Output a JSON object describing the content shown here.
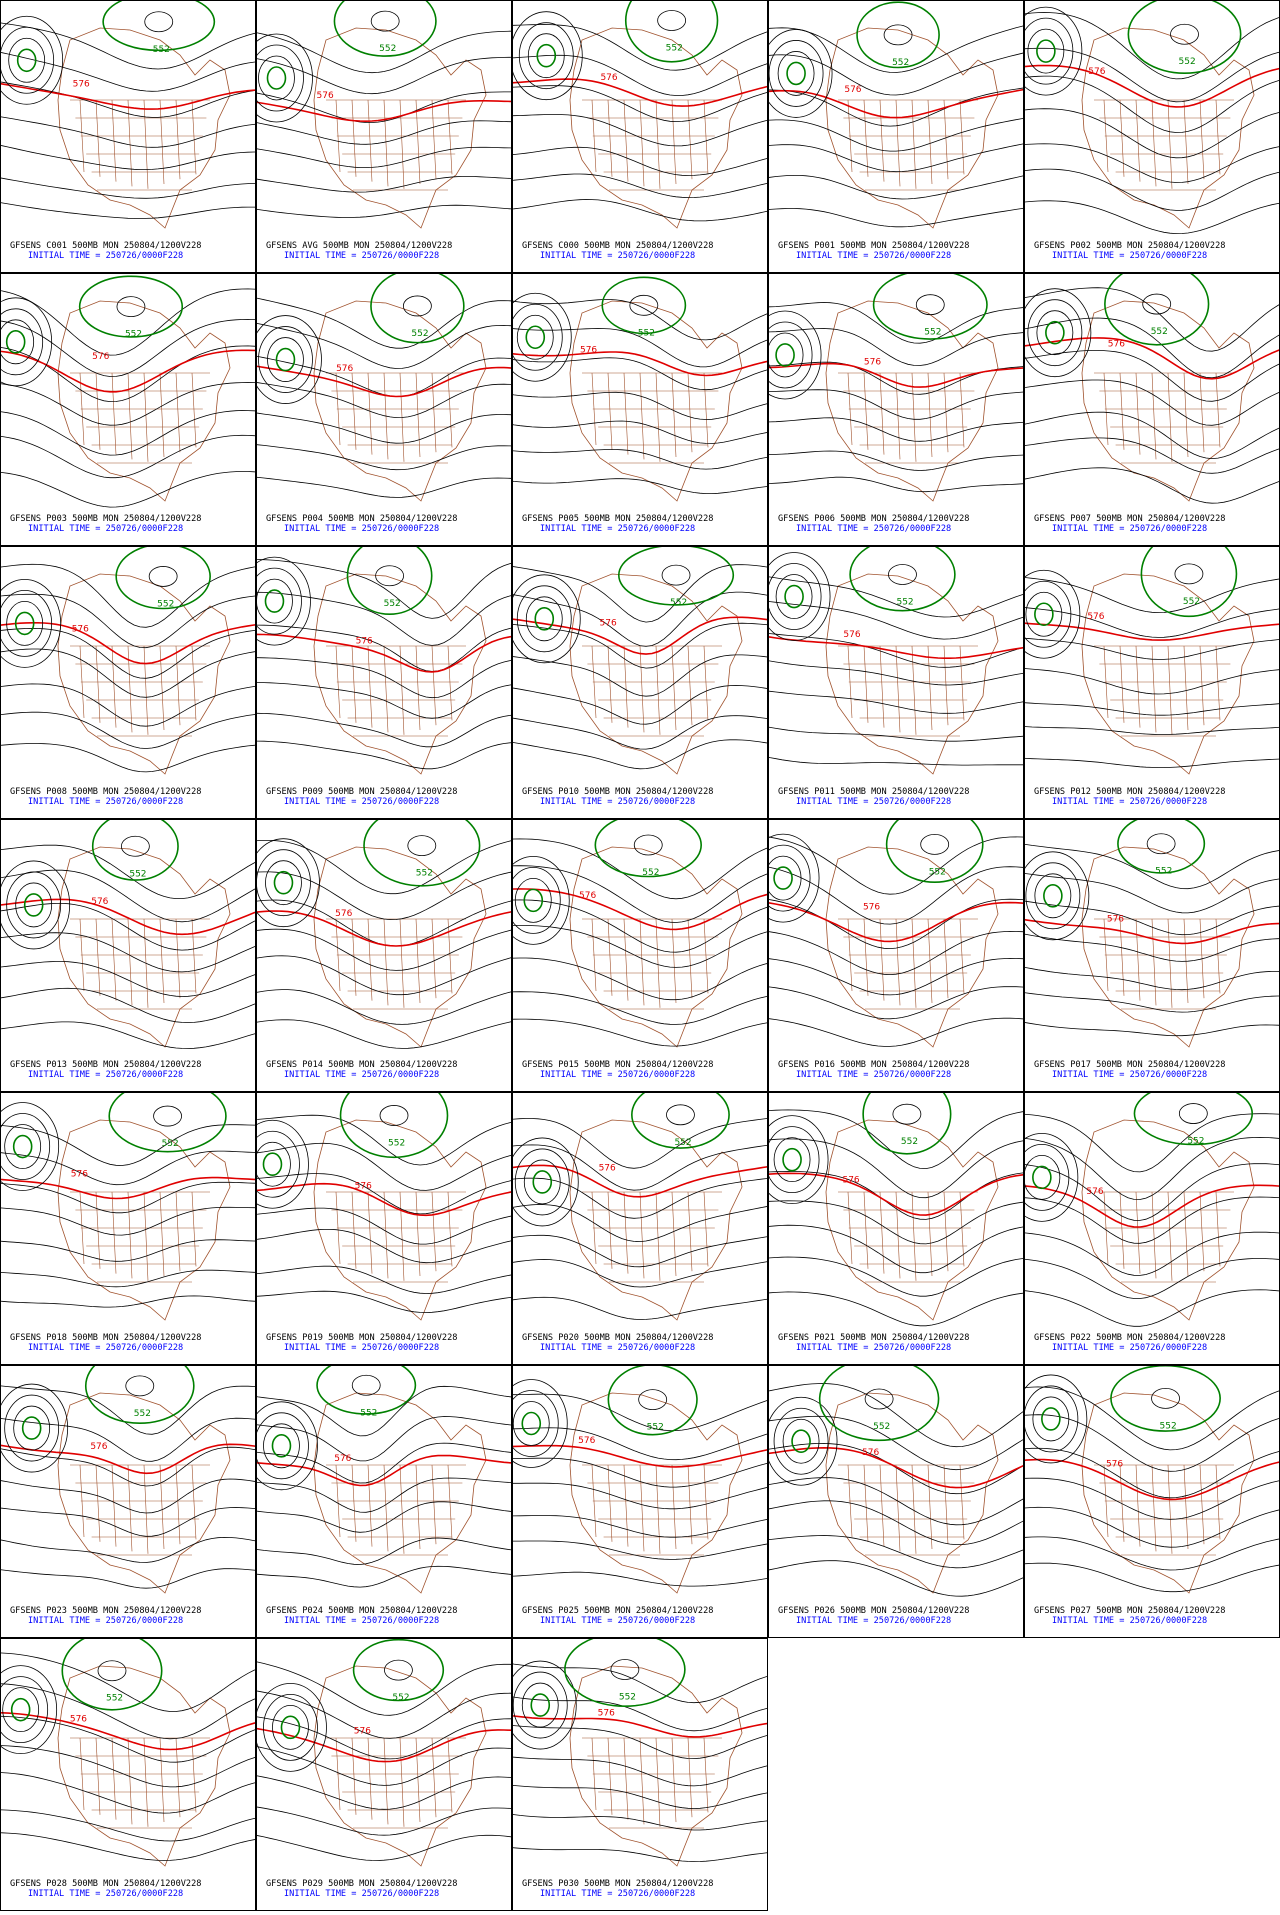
{
  "panels": [
    {
      "model_line": "GFSENS C001 500MB MON 250804/1200V228",
      "init_line": "INITIAL TIME = 250726/0000F228",
      "contour_labels": [
        "552",
        "576"
      ]
    },
    {
      "model_line": "GFSENS AVG 500MB MON 250804/1200V228",
      "init_line": "INITIAL TIME = 250726/0000F228",
      "contour_labels": [
        "552",
        "576"
      ]
    },
    {
      "model_line": "GFSENS C000 500MB MON 250804/1200V228",
      "init_line": "INITIAL TIME = 250726/0000F228",
      "contour_labels": [
        "552",
        "576"
      ]
    },
    {
      "model_line": "GFSENS P001 500MB MON 250804/1200V228",
      "init_line": "INITIAL TIME = 250726/0000F228",
      "contour_labels": [
        "552",
        "576"
      ]
    },
    {
      "model_line": "GFSENS P002 500MB MON 250804/1200V228",
      "init_line": "INITIAL TIME = 250726/0000F228",
      "contour_labels": [
        "552",
        "576"
      ]
    },
    {
      "model_line": "GFSENS P003 500MB MON 250804/1200V228",
      "init_line": "INITIAL TIME = 250726/0000F228",
      "contour_labels": [
        "552",
        "576"
      ]
    },
    {
      "model_line": "GFSENS P004 500MB MON 250804/1200V228",
      "init_line": "INITIAL TIME = 250726/0000F228",
      "contour_labels": [
        "552",
        "576"
      ]
    },
    {
      "model_line": "GFSENS P005 500MB MON 250804/1200V228",
      "init_line": "INITIAL TIME = 250726/0000F228",
      "contour_labels": [
        "552",
        "576"
      ]
    },
    {
      "model_line": "GFSENS P006 500MB MON 250804/1200V228",
      "init_line": "INITIAL TIME = 250726/0000F228",
      "contour_labels": [
        "552",
        "576"
      ]
    },
    {
      "model_line": "GFSENS P007 500MB MON 250804/1200V228",
      "init_line": "INITIAL TIME = 250726/0000F228",
      "contour_labels": [
        "552",
        "576"
      ]
    },
    {
      "model_line": "GFSENS P008 500MB MON 250804/1200V228",
      "init_line": "INITIAL TIME = 250726/0000F228",
      "contour_labels": [
        "552",
        "576"
      ]
    },
    {
      "model_line": "GFSENS P009 500MB MON 250804/1200V228",
      "init_line": "INITIAL TIME = 250726/0000F228",
      "contour_labels": [
        "552",
        "576"
      ]
    },
    {
      "model_line": "GFSENS P010 500MB MON 250804/1200V228",
      "init_line": "INITIAL TIME = 250726/0000F228",
      "contour_labels": [
        "552",
        "576"
      ]
    },
    {
      "model_line": "GFSENS P011 500MB MON 250804/1200V228",
      "init_line": "INITIAL TIME = 250726/0000F228",
      "contour_labels": [
        "552",
        "576"
      ]
    },
    {
      "model_line": "GFSENS P012 500MB MON 250804/1200V228",
      "init_line": "INITIAL TIME = 250726/0000F228",
      "contour_labels": [
        "552",
        "576"
      ]
    },
    {
      "model_line": "GFSENS P013 500MB MON 250804/1200V228",
      "init_line": "INITIAL TIME = 250726/0000F228",
      "contour_labels": [
        "552",
        "576"
      ]
    },
    {
      "model_line": "GFSENS P014 500MB MON 250804/1200V228",
      "init_line": "INITIAL TIME = 250726/0000F228",
      "contour_labels": [
        "552",
        "576"
      ]
    },
    {
      "model_line": "GFSENS P015 500MB MON 250804/1200V228",
      "init_line": "INITIAL TIME = 250726/0000F228",
      "contour_labels": [
        "552",
        "576"
      ]
    },
    {
      "model_line": "GFSENS P016 500MB MON 250804/1200V228",
      "init_line": "INITIAL TIME = 250726/0000F228",
      "contour_labels": [
        "552",
        "576"
      ]
    },
    {
      "model_line": "GFSENS P017 500MB MON 250804/1200V228",
      "init_line": "INITIAL TIME = 250726/0000F228",
      "contour_labels": [
        "552",
        "576"
      ]
    },
    {
      "model_line": "GFSENS P018 500MB MON 250804/1200V228",
      "init_line": "INITIAL TIME = 250726/0000F228",
      "contour_labels": [
        "552",
        "576"
      ]
    },
    {
      "model_line": "GFSENS P019 500MB MON 250804/1200V228",
      "init_line": "INITIAL TIME = 250726/0000F228",
      "contour_labels": [
        "552",
        "576"
      ]
    },
    {
      "model_line": "GFSENS P020 500MB MON 250804/1200V228",
      "init_line": "INITIAL TIME = 250726/0000F228",
      "contour_labels": [
        "552",
        "576"
      ]
    },
    {
      "model_line": "GFSENS P021 500MB MON 250804/1200V228",
      "init_line": "INITIAL TIME = 250726/0000F228",
      "contour_labels": [
        "552",
        "576"
      ]
    },
    {
      "model_line": "GFSENS P022 500MB MON 250804/1200V228",
      "init_line": "INITIAL TIME = 250726/0000F228",
      "contour_labels": [
        "552",
        "576"
      ]
    },
    {
      "model_line": "GFSENS P023 500MB MON 250804/1200V228",
      "init_line": "INITIAL TIME = 250726/0000F228",
      "contour_labels": [
        "552",
        "576"
      ]
    },
    {
      "model_line": "GFSENS P024 500MB MON 250804/1200V228",
      "init_line": "INITIAL TIME = 250726/0000F228",
      "contour_labels": [
        "552",
        "576"
      ]
    },
    {
      "model_line": "GFSENS P025 500MB MON 250804/1200V228",
      "init_line": "INITIAL TIME = 250726/0000F228",
      "contour_labels": [
        "552",
        "576"
      ]
    },
    {
      "model_line": "GFSENS P026 500MB MON 250804/1200V228",
      "init_line": "INITIAL TIME = 250726/0000F228",
      "contour_labels": [
        "552",
        "576"
      ]
    },
    {
      "model_line": "GFSENS P027 500MB MON 250804/1200V228",
      "init_line": "INITIAL TIME = 250726/0000F228",
      "contour_labels": [
        "552",
        "576"
      ]
    },
    {
      "model_line": "GFSENS P028 500MB MON 250804/1200V228",
      "init_line": "INITIAL TIME = 250726/0000F228",
      "contour_labels": [
        "552",
        "576"
      ]
    },
    {
      "model_line": "GFSENS P029 500MB MON 250804/1200V228",
      "init_line": "INITIAL TIME = 250726/0000F228",
      "contour_labels": [
        "552",
        "576"
      ]
    },
    {
      "model_line": "GFSENS P030 500MB MON 250804/1200V228",
      "init_line": "INITIAL TIME = 250726/0000F228",
      "contour_labels": [
        "552",
        "576"
      ]
    }
  ]
}
